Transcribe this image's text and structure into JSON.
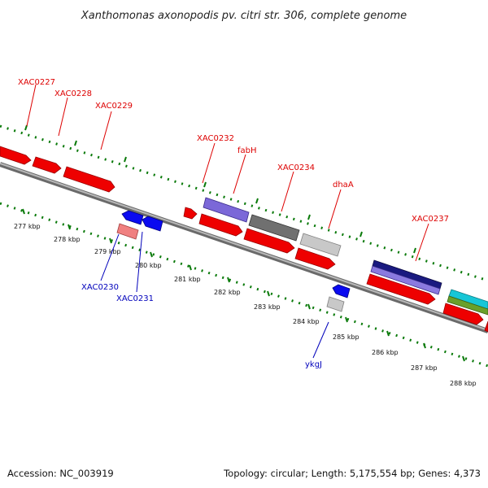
{
  "title": "Xanthomonas axonopodis pv. citri str. 306, complete genome",
  "footer": {
    "accession": "Accession: NC_003919",
    "summary": "Topology: circular; Length: 5,175,554 bp; Genes: 4,373"
  },
  "colors": {
    "forward_label": "#dd0000",
    "reverse_label": "#0000bb",
    "tick": "#0a7a0a",
    "backbone": "#8a8a8a"
  },
  "ruler_labels": [
    "277 kbp",
    "278 kbp",
    "279 kbp",
    "280 kbp",
    "281 kbp",
    "282 kbp",
    "283 kbp",
    "284 kbp",
    "285 kbp",
    "286 kbp",
    "287 kbp",
    "288 kbp"
  ],
  "gene_labels": [
    {
      "id": "xac0227",
      "text": "XAC0227",
      "strand": "forward"
    },
    {
      "id": "xac0228",
      "text": "XAC0228",
      "strand": "forward"
    },
    {
      "id": "xac0229",
      "text": "XAC0229",
      "strand": "forward"
    },
    {
      "id": "xac0232",
      "text": "XAC0232",
      "strand": "forward"
    },
    {
      "id": "fabh",
      "text": "fabH",
      "strand": "forward"
    },
    {
      "id": "xac0234",
      "text": "XAC0234",
      "strand": "forward"
    },
    {
      "id": "dhaa",
      "text": "dhaA",
      "strand": "forward"
    },
    {
      "id": "xac0237",
      "text": "XAC0237",
      "strand": "forward"
    },
    {
      "id": "xac0230",
      "text": "XAC0230",
      "strand": "reverse"
    },
    {
      "id": "xac0231",
      "text": "XAC0231",
      "strand": "reverse"
    },
    {
      "id": "ykgj",
      "text": "ykgJ",
      "strand": "reverse"
    }
  ]
}
